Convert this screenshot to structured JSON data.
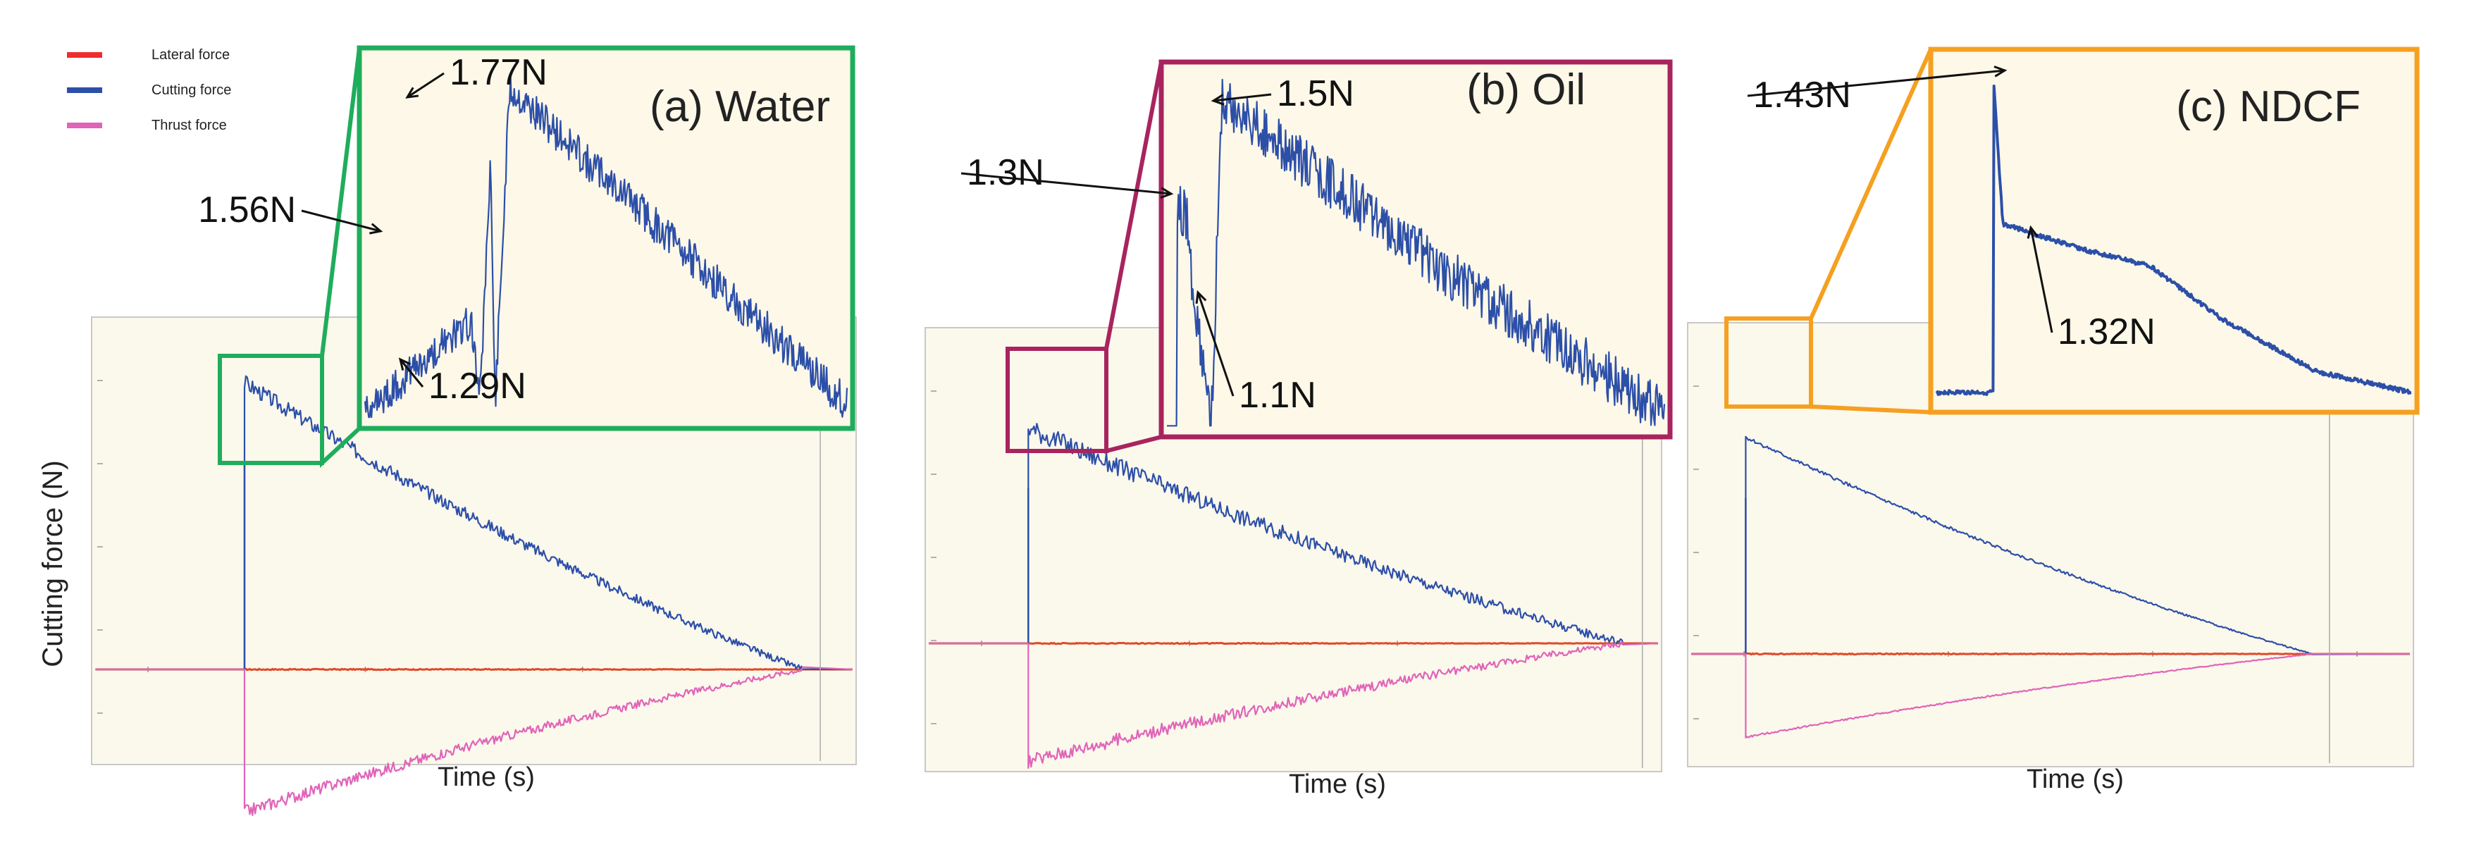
{
  "figure": {
    "ylabel": "Cutting force (N)",
    "legend": [
      {
        "label": "Lateral force",
        "color": "#ee2d2d"
      },
      {
        "label": "Cutting force",
        "color": "#2c4fa8"
      },
      {
        "label": "Thrust force",
        "color": "#e064b8"
      }
    ],
    "colors": {
      "plot_bg": "#fbf8ec",
      "inset_bg": "#fdf8e8",
      "cutting": "#2c4fa8",
      "lateral": "#e04a2a",
      "thrust": "#e064b8",
      "annotation": "#111111"
    }
  },
  "chart_data": [
    {
      "type": "line",
      "title": "(a) Water",
      "xlabel": "Time (s)",
      "ylabel": "Cutting force (N)",
      "frame_color": "#1fad5c",
      "xlim": [
        0,
        1
      ],
      "ylim": [
        -1,
        2
      ],
      "series": [
        {
          "name": "Lateral force",
          "shape": {
            "start": 0.2,
            "end": 0.93,
            "peak": 0.0,
            "floor": 0.0,
            "noise": 0.004
          }
        },
        {
          "name": "Cutting force",
          "shape": {
            "start": 0.2,
            "end": 0.93,
            "peak": 1.77,
            "floor": 0.0,
            "noise": 0.05
          }
        },
        {
          "name": "Thrust force",
          "shape": {
            "start": 0.2,
            "end": 0.93,
            "peak": -0.88,
            "floor": 0.0,
            "noise": 0.04
          }
        }
      ],
      "annotations": [
        {
          "label": "1.56N",
          "value": 1.56
        },
        {
          "label": "1.77N",
          "value": 1.77
        },
        {
          "label": "1.29N",
          "value": 1.29
        }
      ]
    },
    {
      "type": "line",
      "title": "(b) Oil",
      "xlabel": "Time (s)",
      "ylabel": "Cutting force (N)",
      "frame_color": "#a8245e",
      "xlim": [
        0,
        1
      ],
      "ylim": [
        -1,
        2
      ],
      "series": [
        {
          "name": "Lateral force",
          "shape": {
            "start": 0.14,
            "end": 0.95,
            "peak": 0.0,
            "floor": 0.0,
            "noise": 0.004
          }
        },
        {
          "name": "Cutting force",
          "shape": {
            "start": 0.14,
            "end": 0.95,
            "peak": 1.5,
            "floor": 0.0,
            "noise": 0.07
          }
        },
        {
          "name": "Thrust force",
          "shape": {
            "start": 0.14,
            "end": 0.95,
            "peak": -0.82,
            "floor": 0.0,
            "noise": 0.05
          }
        }
      ],
      "annotations": [
        {
          "label": "1.3N",
          "value": 1.3
        },
        {
          "label": "1.5N",
          "value": 1.5
        },
        {
          "label": "1.1N",
          "value": 1.1
        }
      ]
    },
    {
      "type": "line",
      "title": "(c) NDCF",
      "xlabel": "Time (s)",
      "ylabel": "Cutting force (N)",
      "frame_color": "#f5a020",
      "xlim": [
        0,
        1
      ],
      "ylim": [
        -1,
        2
      ],
      "series": [
        {
          "name": "Lateral force",
          "shape": {
            "start": 0.08,
            "end": 0.86,
            "peak": 0.0,
            "floor": 0.0,
            "noise": 0.004
          }
        },
        {
          "name": "Cutting force",
          "shape": {
            "start": 0.08,
            "end": 0.86,
            "peak": 1.43,
            "floor": 0.0,
            "noise": 0.012
          }
        },
        {
          "name": "Thrust force",
          "shape": {
            "start": 0.08,
            "end": 0.86,
            "peak": -0.55,
            "floor": 0.0,
            "noise": 0.006
          }
        }
      ],
      "annotations": [
        {
          "label": "1.43N",
          "value": 1.43
        },
        {
          "label": "1.32N",
          "value": 1.32
        }
      ]
    }
  ]
}
